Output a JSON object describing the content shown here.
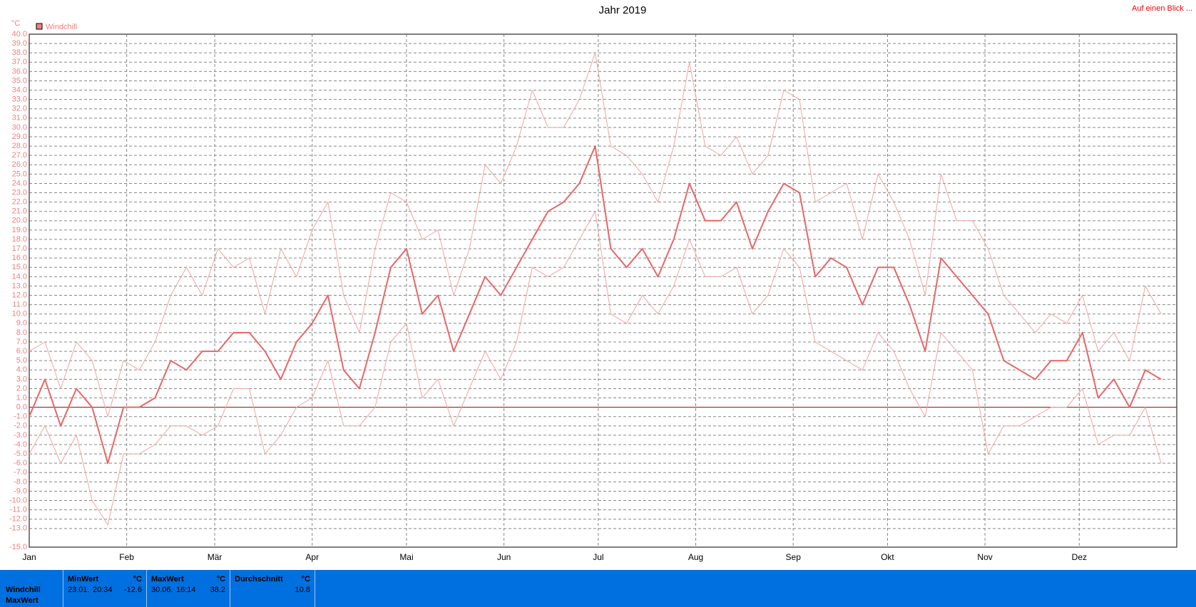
{
  "chart_data": {
    "type": "line",
    "title": "Jahr 2019",
    "link": "Auf einen Blick ...",
    "y_label": "°C",
    "legend_label": "Windchill",
    "legend_color": "#f08080",
    "grid": true,
    "x": [
      0,
      5,
      10,
      15,
      20,
      25,
      30,
      35,
      40,
      45,
      50,
      55,
      60,
      65,
      70,
      75,
      80,
      85,
      90,
      95,
      100,
      105,
      110,
      115,
      120,
      125,
      130,
      135,
      140,
      145,
      150,
      155,
      160,
      165,
      170,
      175,
      180,
      185,
      190,
      195,
      200,
      205,
      210,
      215,
      220,
      225,
      230,
      235,
      240,
      245,
      250,
      255,
      260,
      265,
      270,
      275,
      280,
      285,
      290,
      295,
      300,
      305,
      310,
      315,
      320,
      325,
      330,
      335,
      340,
      345,
      350,
      355,
      360
    ],
    "xlim": [
      0,
      365
    ],
    "xticks": [
      {
        "value": 0,
        "label": "Jan"
      },
      {
        "value": 31,
        "label": "Feb"
      },
      {
        "value": 59,
        "label": "Mär"
      },
      {
        "value": 90,
        "label": "Apr"
      },
      {
        "value": 120,
        "label": "Mai"
      },
      {
        "value": 151,
        "label": "Jun"
      },
      {
        "value": 181,
        "label": "Jul"
      },
      {
        "value": 212,
        "label": "Aug"
      },
      {
        "value": 243,
        "label": "Sep"
      },
      {
        "value": 273,
        "label": "Okt"
      },
      {
        "value": 304,
        "label": "Nov"
      },
      {
        "value": 334,
        "label": "Dez"
      }
    ],
    "ylim": [
      -15,
      40
    ],
    "yticks": [
      {
        "value": 40,
        "label": "40.0"
      },
      {
        "value": 39,
        "label": "39.0"
      },
      {
        "value": 38,
        "label": "38.0"
      },
      {
        "value": 37,
        "label": "37.0"
      },
      {
        "value": 36,
        "label": "36.0"
      },
      {
        "value": 35,
        "label": "35.0"
      },
      {
        "value": 34,
        "label": "34.0"
      },
      {
        "value": 33,
        "label": "33.0"
      },
      {
        "value": 32,
        "label": "32.0"
      },
      {
        "value": 31,
        "label": "31.0"
      },
      {
        "value": 30,
        "label": "30.0"
      },
      {
        "value": 29,
        "label": "29.0"
      },
      {
        "value": 28,
        "label": "28.0"
      },
      {
        "value": 27,
        "label": "27.0"
      },
      {
        "value": 26,
        "label": "26.0"
      },
      {
        "value": 25,
        "label": "25.0"
      },
      {
        "value": 24,
        "label": "24.0"
      },
      {
        "value": 23,
        "label": "23.0"
      },
      {
        "value": 22,
        "label": "22.0"
      },
      {
        "value": 21,
        "label": "21.0"
      },
      {
        "value": 20,
        "label": "20.0"
      },
      {
        "value": 19,
        "label": "19.0"
      },
      {
        "value": 18,
        "label": "18.0"
      },
      {
        "value": 17,
        "label": "17.0"
      },
      {
        "value": 16,
        "label": "16.0"
      },
      {
        "value": 15,
        "label": "15.0"
      },
      {
        "value": 14,
        "label": "14.0"
      },
      {
        "value": 13,
        "label": "13.0"
      },
      {
        "value": 12,
        "label": "12.0"
      },
      {
        "value": 11,
        "label": "11.0"
      },
      {
        "value": 10,
        "label": "10.0"
      },
      {
        "value": 9,
        "label": "9.0"
      },
      {
        "value": 8,
        "label": "8.0"
      },
      {
        "value": 7,
        "label": "7.0"
      },
      {
        "value": 6,
        "label": "6.0"
      },
      {
        "value": 5,
        "label": "5.0"
      },
      {
        "value": 4,
        "label": "4.0"
      },
      {
        "value": 3,
        "label": "3.0"
      },
      {
        "value": 2,
        "label": "2.0"
      },
      {
        "value": 1,
        "label": "1.0"
      },
      {
        "value": 0,
        "label": "0.0"
      },
      {
        "value": -1,
        "label": "-1.0"
      },
      {
        "value": -2,
        "label": "-2.0"
      },
      {
        "value": -3,
        "label": "-3.0"
      },
      {
        "value": -4,
        "label": "-4.0"
      },
      {
        "value": -5,
        "label": "-5.0"
      },
      {
        "value": -6,
        "label": "-6.0"
      },
      {
        "value": -7,
        "label": "-7.0"
      },
      {
        "value": -8,
        "label": "-8.0"
      },
      {
        "value": -9,
        "label": "-9.0"
      },
      {
        "value": -10,
        "label": "-10.0"
      },
      {
        "value": -11,
        "label": "-11.0"
      },
      {
        "value": -12,
        "label": "-12.0"
      },
      {
        "value": -13,
        "label": "-13.0"
      },
      {
        "value": -15,
        "label": "-15.0"
      }
    ],
    "series": [
      {
        "color": "#f4a3a3",
        "width": 1,
        "values": [
          6,
          7,
          2,
          7,
          5,
          -1,
          5,
          4,
          7,
          12,
          15,
          12,
          17,
          15,
          16,
          10,
          17,
          14,
          19,
          22,
          12,
          8,
          17,
          23,
          22,
          18,
          19,
          12,
          17,
          26,
          24,
          28,
          34,
          30,
          30,
          33,
          38,
          28,
          27,
          25,
          22,
          28,
          37,
          28,
          27,
          29,
          25,
          27,
          34,
          33,
          22,
          23,
          24,
          18,
          25,
          22,
          18,
          12,
          25,
          20,
          20,
          17,
          12,
          10,
          8,
          10,
          9,
          12,
          6,
          8,
          5,
          13,
          10
        ]
      },
      {
        "color": "#f4a3a3",
        "width": 1,
        "values": [
          -5,
          -2,
          -6,
          -3,
          -10,
          -12.6,
          -5,
          -5,
          -4,
          -2,
          -2,
          -3,
          -2,
          2,
          2,
          -5,
          -3,
          0,
          1,
          5,
          -2,
          -2,
          0,
          7,
          9,
          1,
          3,
          -2,
          2,
          6,
          3,
          7,
          15,
          14,
          15,
          18,
          21,
          10,
          9,
          12,
          10,
          13,
          18,
          14,
          14,
          15,
          10,
          12,
          17,
          15,
          7,
          6,
          5,
          4,
          8,
          6,
          2,
          -1,
          8,
          6,
          4,
          -5,
          -2,
          -2,
          -1,
          0,
          0,
          2,
          -4,
          -3,
          -3,
          0,
          -6
        ]
      },
      {
        "color": "#e86666",
        "width": 2,
        "values": [
          -1,
          3,
          -2,
          2,
          0,
          -6,
          0,
          0,
          1,
          5,
          4,
          6,
          6,
          8,
          8,
          6,
          3,
          7,
          9,
          12,
          4,
          2,
          8,
          15,
          17,
          10,
          12,
          6,
          10,
          14,
          12,
          15,
          18,
          21,
          22,
          24,
          28,
          17,
          15,
          17,
          14,
          18,
          24,
          20,
          20,
          22,
          17,
          21,
          24,
          23,
          14,
          16,
          15,
          11,
          15,
          15,
          11,
          6,
          16,
          14,
          12,
          10,
          5,
          4,
          3,
          5,
          5,
          8,
          1,
          3,
          0,
          4,
          3
        ]
      }
    ]
  },
  "stats_panel": {
    "row_labels": [
      "Windchill",
      "MaxWert"
    ],
    "boxes": [
      {
        "header": "MinWert",
        "unit": "°C",
        "date": "23.01.",
        "time": "20:34",
        "value": -12.6
      },
      {
        "header": "MaxWert",
        "unit": "°C",
        "date": "30.06.",
        "time": "16:14",
        "value": 38.2
      },
      {
        "header": "Durchschnitt",
        "unit": "°C",
        "value": 10.8
      }
    ]
  }
}
